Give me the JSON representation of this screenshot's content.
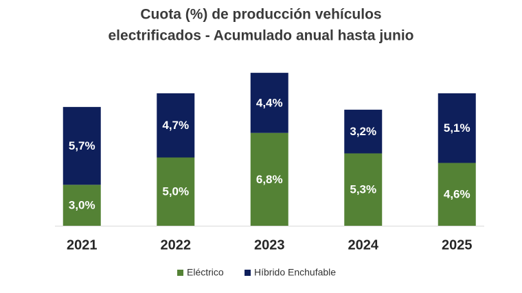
{
  "chart_data": {
    "type": "stacked-bar",
    "title": [
      "Cuota (%) de producción vehículos",
      "electrificados - Acumulado anual hasta junio"
    ],
    "categories": [
      "2021",
      "2022",
      "2023",
      "2024",
      "2025"
    ],
    "series": [
      {
        "name": "Eléctrico",
        "color": "#548235",
        "values": [
          3.0,
          5.0,
          6.8,
          5.3,
          4.6
        ],
        "value_labels": [
          "3,0%",
          "5,0%",
          "6,8%",
          "5,3%",
          "4,6%"
        ]
      },
      {
        "name": "Híbrido Enchufable",
        "color": "#0e1f5b",
        "values": [
          5.7,
          4.7,
          4.4,
          3.2,
          5.1
        ],
        "value_labels": [
          "5,7%",
          "4,7%",
          "4,4%",
          "3,2%",
          "5,1%"
        ]
      }
    ]
  }
}
